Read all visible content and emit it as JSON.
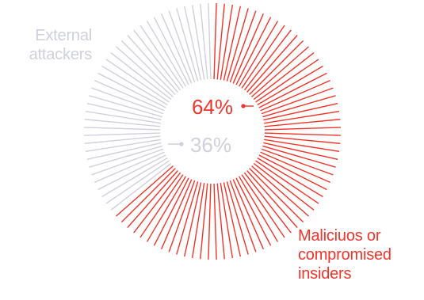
{
  "chart_data": {
    "type": "pie",
    "style": "radial-lines",
    "segments": [
      {
        "label_lines": [
          "Maliciuos or",
          "compromised",
          "insiders"
        ],
        "value": 64,
        "value_label": "64%",
        "color": "#f0342a"
      },
      {
        "label_lines": [
          "External",
          "attackers"
        ],
        "value": 36,
        "value_label": "36%",
        "color": "#cfd0dc"
      }
    ]
  }
}
